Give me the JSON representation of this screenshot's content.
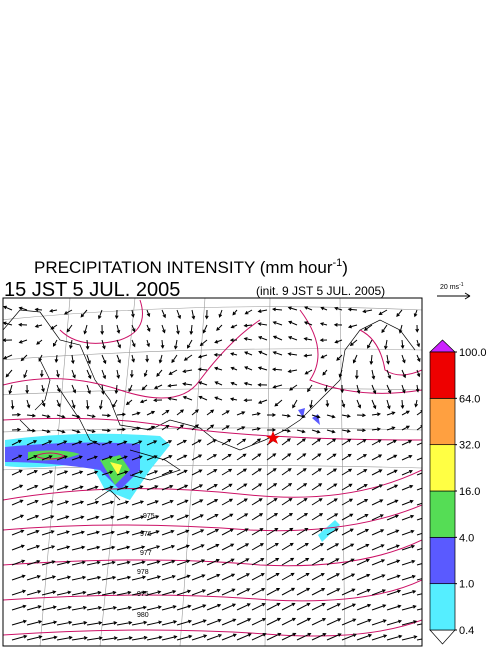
{
  "header": {
    "title": "PRECIPITATION INTENSITY (mm hour",
    "title_exponent": "-1",
    "title_close": ")",
    "valid_time": "15 JST 5 JUL. 2005",
    "init_time": "(init. 9 JST 5 JUL. 2005)"
  },
  "vector_scale": {
    "label": "20 ms",
    "exponent": "-1"
  },
  "colorbar": {
    "levels": [
      {
        "value": 0.4,
        "label": "0.4"
      },
      {
        "value": 1,
        "label": "1.0"
      },
      {
        "value": 4,
        "label": "4.0"
      },
      {
        "value": 16,
        "label": "16.0"
      },
      {
        "value": 32,
        "label": "32.0"
      },
      {
        "value": 64,
        "label": "64.0"
      },
      {
        "value": 100,
        "label": "100.0"
      }
    ],
    "colors": [
      "#55eeff",
      "#5a5aff",
      "#55dd55",
      "#ffff44",
      "#ffa040",
      "#ee0000"
    ],
    "over_color": "#cc22ff",
    "under_color": "#ffffff"
  },
  "contour_labels": [
    "975",
    "976",
    "977",
    "978",
    "975",
    "980"
  ]
}
